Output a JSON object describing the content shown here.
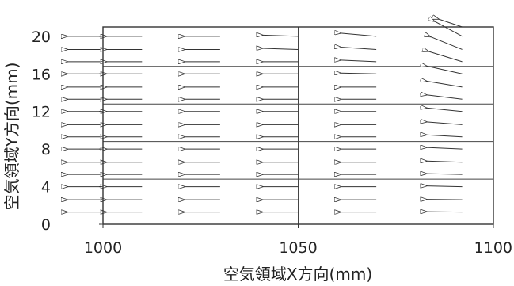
{
  "chart_data": {
    "type": "vector_field",
    "xlabel": "空気領域X方向(mm)",
    "ylabel": "空気領域Y方向(mm)",
    "xlim": [
      1000,
      1100
    ],
    "ylim": [
      0,
      21
    ],
    "x_ticks": [
      1000,
      1050,
      1100
    ],
    "y_ticks": [
      0,
      4,
      8,
      12,
      16,
      20
    ],
    "x_tick_labels": [
      "1000",
      "1050",
      "1100"
    ],
    "y_tick_labels": [
      "0",
      "4",
      "8",
      "12",
      "16",
      "20"
    ],
    "grid": {
      "vertical": [
        1050
      ],
      "horizontal": [
        4.8,
        8.8,
        12.8,
        16.8
      ]
    },
    "columns_x": [
      1000,
      1010,
      1030,
      1050,
      1070,
      1092
    ],
    "rows_y": [
      1.3,
      2.6,
      4.0,
      5.3,
      6.6,
      8.0,
      9.3,
      10.6,
      12.0,
      13.3,
      14.6,
      16.0,
      17.3,
      18.6,
      20.0
    ],
    "vectors": [
      {
        "x": 1000,
        "y": 1.3,
        "dx": -9,
        "dy": 0
      },
      {
        "x": 1000,
        "y": 2.6,
        "dx": -9,
        "dy": 0
      },
      {
        "x": 1000,
        "y": 4.0,
        "dx": -9,
        "dy": 0
      },
      {
        "x": 1000,
        "y": 5.3,
        "dx": -9,
        "dy": 0
      },
      {
        "x": 1000,
        "y": 6.6,
        "dx": -9,
        "dy": 0
      },
      {
        "x": 1000,
        "y": 8.0,
        "dx": -9,
        "dy": 0
      },
      {
        "x": 1000,
        "y": 9.3,
        "dx": -9,
        "dy": 0
      },
      {
        "x": 1000,
        "y": 10.6,
        "dx": -9,
        "dy": 0
      },
      {
        "x": 1000,
        "y": 12.0,
        "dx": -9,
        "dy": 0
      },
      {
        "x": 1000,
        "y": 13.3,
        "dx": -9,
        "dy": 0
      },
      {
        "x": 1000,
        "y": 14.6,
        "dx": -9,
        "dy": 0
      },
      {
        "x": 1000,
        "y": 16.0,
        "dx": -9,
        "dy": 0
      },
      {
        "x": 1000,
        "y": 17.3,
        "dx": -9,
        "dy": 0
      },
      {
        "x": 1000,
        "y": 18.6,
        "dx": -9,
        "dy": 0
      },
      {
        "x": 1000,
        "y": 20.0,
        "dx": -9,
        "dy": 0
      },
      {
        "x": 1010,
        "y": 1.3,
        "dx": -9,
        "dy": 0
      },
      {
        "x": 1010,
        "y": 2.6,
        "dx": -9,
        "dy": 0
      },
      {
        "x": 1010,
        "y": 4.0,
        "dx": -9,
        "dy": 0
      },
      {
        "x": 1010,
        "y": 5.3,
        "dx": -9,
        "dy": 0
      },
      {
        "x": 1010,
        "y": 6.6,
        "dx": -9,
        "dy": 0
      },
      {
        "x": 1010,
        "y": 8.0,
        "dx": -9,
        "dy": 0
      },
      {
        "x": 1010,
        "y": 9.3,
        "dx": -9,
        "dy": 0
      },
      {
        "x": 1010,
        "y": 10.6,
        "dx": -9,
        "dy": 0
      },
      {
        "x": 1010,
        "y": 12.0,
        "dx": -9,
        "dy": 0
      },
      {
        "x": 1010,
        "y": 13.3,
        "dx": -9,
        "dy": 0
      },
      {
        "x": 1010,
        "y": 14.6,
        "dx": -9,
        "dy": 0
      },
      {
        "x": 1010,
        "y": 16.0,
        "dx": -9,
        "dy": 0
      },
      {
        "x": 1010,
        "y": 17.3,
        "dx": -9,
        "dy": 0
      },
      {
        "x": 1010,
        "y": 18.6,
        "dx": -9,
        "dy": 0
      },
      {
        "x": 1010,
        "y": 20.0,
        "dx": -9,
        "dy": 0
      },
      {
        "x": 1030,
        "y": 1.3,
        "dx": -9,
        "dy": 0
      },
      {
        "x": 1030,
        "y": 2.6,
        "dx": -9,
        "dy": 0
      },
      {
        "x": 1030,
        "y": 4.0,
        "dx": -9,
        "dy": 0
      },
      {
        "x": 1030,
        "y": 5.3,
        "dx": -9,
        "dy": 0
      },
      {
        "x": 1030,
        "y": 6.6,
        "dx": -9,
        "dy": 0
      },
      {
        "x": 1030,
        "y": 8.0,
        "dx": -9,
        "dy": 0
      },
      {
        "x": 1030,
        "y": 9.3,
        "dx": -9,
        "dy": 0
      },
      {
        "x": 1030,
        "y": 10.6,
        "dx": -9,
        "dy": 0
      },
      {
        "x": 1030,
        "y": 12.0,
        "dx": -9,
        "dy": 0
      },
      {
        "x": 1030,
        "y": 13.3,
        "dx": -9,
        "dy": 0
      },
      {
        "x": 1030,
        "y": 14.6,
        "dx": -9,
        "dy": 0
      },
      {
        "x": 1030,
        "y": 16.0,
        "dx": -9,
        "dy": 0
      },
      {
        "x": 1030,
        "y": 17.3,
        "dx": -9,
        "dy": 0
      },
      {
        "x": 1030,
        "y": 18.6,
        "dx": -9,
        "dy": 0
      },
      {
        "x": 1030,
        "y": 20.0,
        "dx": -9,
        "dy": 0
      },
      {
        "x": 1050,
        "y": 1.3,
        "dx": -9,
        "dy": 0
      },
      {
        "x": 1050,
        "y": 2.6,
        "dx": -9,
        "dy": 0
      },
      {
        "x": 1050,
        "y": 4.0,
        "dx": -9,
        "dy": 0
      },
      {
        "x": 1050,
        "y": 5.3,
        "dx": -9,
        "dy": 0
      },
      {
        "x": 1050,
        "y": 6.6,
        "dx": -9,
        "dy": 0
      },
      {
        "x": 1050,
        "y": 8.0,
        "dx": -9,
        "dy": 0
      },
      {
        "x": 1050,
        "y": 9.3,
        "dx": -9,
        "dy": 0
      },
      {
        "x": 1050,
        "y": 10.6,
        "dx": -9,
        "dy": 0
      },
      {
        "x": 1050,
        "y": 12.0,
        "dx": -9,
        "dy": 0
      },
      {
        "x": 1050,
        "y": 13.3,
        "dx": -9,
        "dy": 0
      },
      {
        "x": 1050,
        "y": 14.6,
        "dx": -9,
        "dy": 0
      },
      {
        "x": 1050,
        "y": 16.0,
        "dx": -9,
        "dy": 0
      },
      {
        "x": 1050,
        "y": 17.3,
        "dx": -9,
        "dy": 0
      },
      {
        "x": 1050,
        "y": 18.6,
        "dx": -9,
        "dy": 0.3
      },
      {
        "x": 1050,
        "y": 20.0,
        "dx": -9,
        "dy": 0.3
      },
      {
        "x": 1070,
        "y": 1.3,
        "dx": -9,
        "dy": 0
      },
      {
        "x": 1070,
        "y": 2.6,
        "dx": -9,
        "dy": 0
      },
      {
        "x": 1070,
        "y": 4.0,
        "dx": -9,
        "dy": 0
      },
      {
        "x": 1070,
        "y": 5.3,
        "dx": -9,
        "dy": 0
      },
      {
        "x": 1070,
        "y": 6.6,
        "dx": -9,
        "dy": 0
      },
      {
        "x": 1070,
        "y": 8.0,
        "dx": -9,
        "dy": 0
      },
      {
        "x": 1070,
        "y": 9.3,
        "dx": -9,
        "dy": 0
      },
      {
        "x": 1070,
        "y": 10.6,
        "dx": -9,
        "dy": 0
      },
      {
        "x": 1070,
        "y": 12.0,
        "dx": -9,
        "dy": 0
      },
      {
        "x": 1070,
        "y": 13.3,
        "dx": -9,
        "dy": 0
      },
      {
        "x": 1070,
        "y": 14.6,
        "dx": -9,
        "dy": 0
      },
      {
        "x": 1070,
        "y": 16.0,
        "dx": -9,
        "dy": 0.2
      },
      {
        "x": 1070,
        "y": 17.3,
        "dx": -9,
        "dy": 0.4
      },
      {
        "x": 1070,
        "y": 18.6,
        "dx": -9,
        "dy": 0.6
      },
      {
        "x": 1070,
        "y": 20.0,
        "dx": -9,
        "dy": 0.8
      },
      {
        "x": 1092,
        "y": 1.3,
        "dx": -9,
        "dy": 0.1
      },
      {
        "x": 1092,
        "y": 2.6,
        "dx": -9,
        "dy": 0.1
      },
      {
        "x": 1092,
        "y": 4.0,
        "dx": -9,
        "dy": 0.2
      },
      {
        "x": 1092,
        "y": 5.3,
        "dx": -9,
        "dy": 0.2
      },
      {
        "x": 1092,
        "y": 6.6,
        "dx": -9,
        "dy": 0.3
      },
      {
        "x": 1092,
        "y": 8.0,
        "dx": -9,
        "dy": 0.4
      },
      {
        "x": 1092,
        "y": 9.3,
        "dx": -9,
        "dy": 0.5
      },
      {
        "x": 1092,
        "y": 10.6,
        "dx": -9,
        "dy": 0.7
      },
      {
        "x": 1092,
        "y": 12.0,
        "dx": -9,
        "dy": 0.9
      },
      {
        "x": 1092,
        "y": 13.3,
        "dx": -9,
        "dy": 1.1
      },
      {
        "x": 1092,
        "y": 14.6,
        "dx": -9,
        "dy": 1.5
      },
      {
        "x": 1092,
        "y": 16.0,
        "dx": -9,
        "dy": 2.0
      },
      {
        "x": 1092,
        "y": 17.3,
        "dx": -8.5,
        "dy": 2.6
      },
      {
        "x": 1092,
        "y": 18.6,
        "dx": -8,
        "dy": 3.2
      },
      {
        "x": 1092,
        "y": 20.0,
        "dx": -7,
        "dy": 3.8
      },
      {
        "x": 1092,
        "y": 21.0,
        "dx": -6,
        "dy": 2.0
      }
    ]
  }
}
